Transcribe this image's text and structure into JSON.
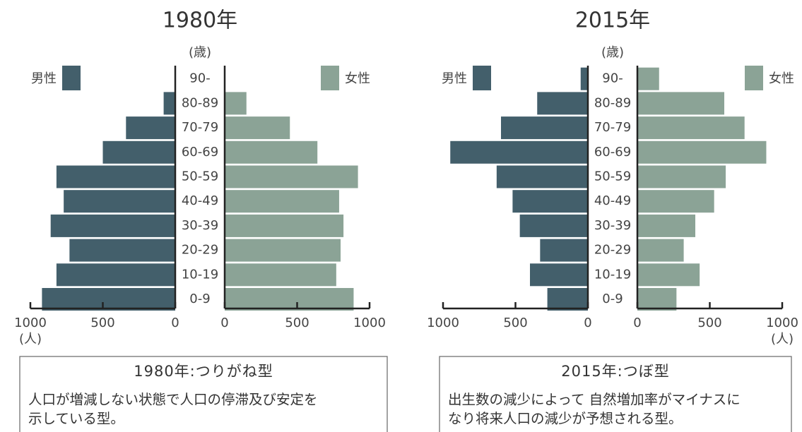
{
  "chart_data": [
    {
      "type": "pyramid",
      "title": "1980年",
      "age_label": "(歳)",
      "unit_label": "(人)",
      "categories": [
        "0-9",
        "10-19",
        "20-29",
        "30-39",
        "40-49",
        "50-59",
        "60-69",
        "70-79",
        "80-89",
        "90-"
      ],
      "series": [
        {
          "name": "男性",
          "color": "#435f6b",
          "values": [
            920,
            820,
            730,
            860,
            770,
            820,
            500,
            340,
            80,
            0
          ]
        },
        {
          "name": "女性",
          "color": "#8ba396",
          "values": [
            890,
            770,
            800,
            820,
            790,
            920,
            640,
            450,
            150,
            0
          ]
        }
      ],
      "xlim": [
        0,
        1000
      ],
      "xticks": [
        0,
        500,
        1000
      ],
      "caption": {
        "title": "1980年:つりがね型",
        "lines": [
          "人口が増減しない状態で人口の停滞及び安定を",
          "示している型。"
        ]
      }
    },
    {
      "type": "pyramid",
      "title": "2015年",
      "age_label": "(歳)",
      "unit_label": "(人)",
      "categories": [
        "0-9",
        "10-19",
        "20-29",
        "30-39",
        "40-49",
        "50-59",
        "60-69",
        "70-79",
        "80-89",
        "90-"
      ],
      "series": [
        {
          "name": "男性",
          "color": "#435f6b",
          "values": [
            280,
            400,
            330,
            470,
            520,
            630,
            950,
            600,
            350,
            50
          ]
        },
        {
          "name": "女性",
          "color": "#8ba396",
          "values": [
            270,
            430,
            320,
            400,
            530,
            610,
            890,
            740,
            600,
            150
          ]
        }
      ],
      "xlim": [
        0,
        1000
      ],
      "xticks": [
        0,
        500,
        1000
      ],
      "caption": {
        "title": "2015年:つぼ型",
        "lines": [
          "出生数の減少によって 自然増加率がマイナスに",
          "なり将来人口の減少が予想される型。"
        ]
      }
    }
  ]
}
